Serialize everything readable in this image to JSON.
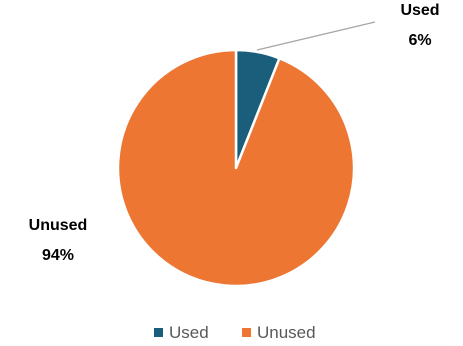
{
  "chart_data": {
    "type": "pie",
    "categories": [
      "Used",
      "Unused"
    ],
    "values": [
      6,
      94
    ],
    "value_suffix": "%",
    "colors": [
      "#1b5e7c",
      "#ec7632"
    ],
    "legend_position": "bottom",
    "data_labels": [
      {
        "category": "Used",
        "value": "6%"
      },
      {
        "category": "Unused",
        "value": "94%"
      }
    ]
  }
}
